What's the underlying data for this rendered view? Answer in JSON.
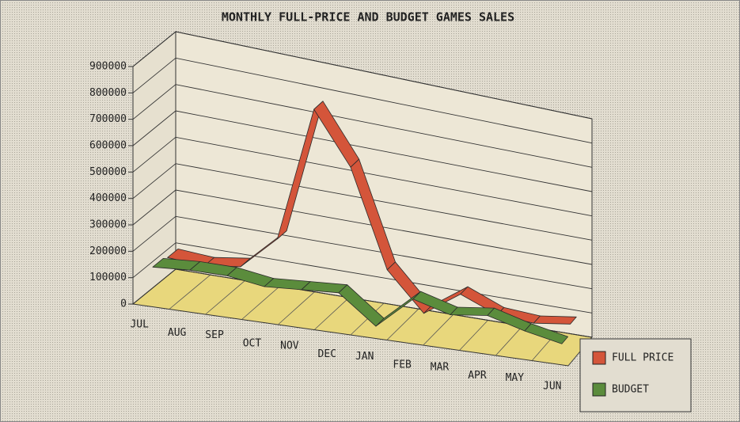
{
  "chart_data": {
    "type": "line3d",
    "title": "MONTHLY FULL-PRICE AND BUDGET GAMES SALES",
    "categories": [
      "JUL",
      "AUG",
      "SEP",
      "OCT",
      "NOV",
      "DEC",
      "JAN",
      "FEB",
      "MAR",
      "APR",
      "MAY",
      "JUN"
    ],
    "series": [
      {
        "name": "FULL PRICE",
        "color": "#d4553a",
        "values": [
          110000,
          100000,
          120000,
          250000,
          780000,
          580000,
          200000,
          50000,
          150000,
          90000,
          80000,
          100000
        ]
      },
      {
        "name": "BUDGET",
        "color": "#5b8c3c",
        "values": [
          120000,
          130000,
          130000,
          110000,
          120000,
          130000,
          20000,
          150000,
          110000,
          130000,
          90000,
          60000
        ]
      }
    ],
    "ylim": [
      0,
      900000
    ],
    "yticks": [
      0,
      100000,
      200000,
      300000,
      400000,
      500000,
      600000,
      700000,
      800000,
      900000
    ],
    "grid": true,
    "legend": "bottom-right"
  }
}
